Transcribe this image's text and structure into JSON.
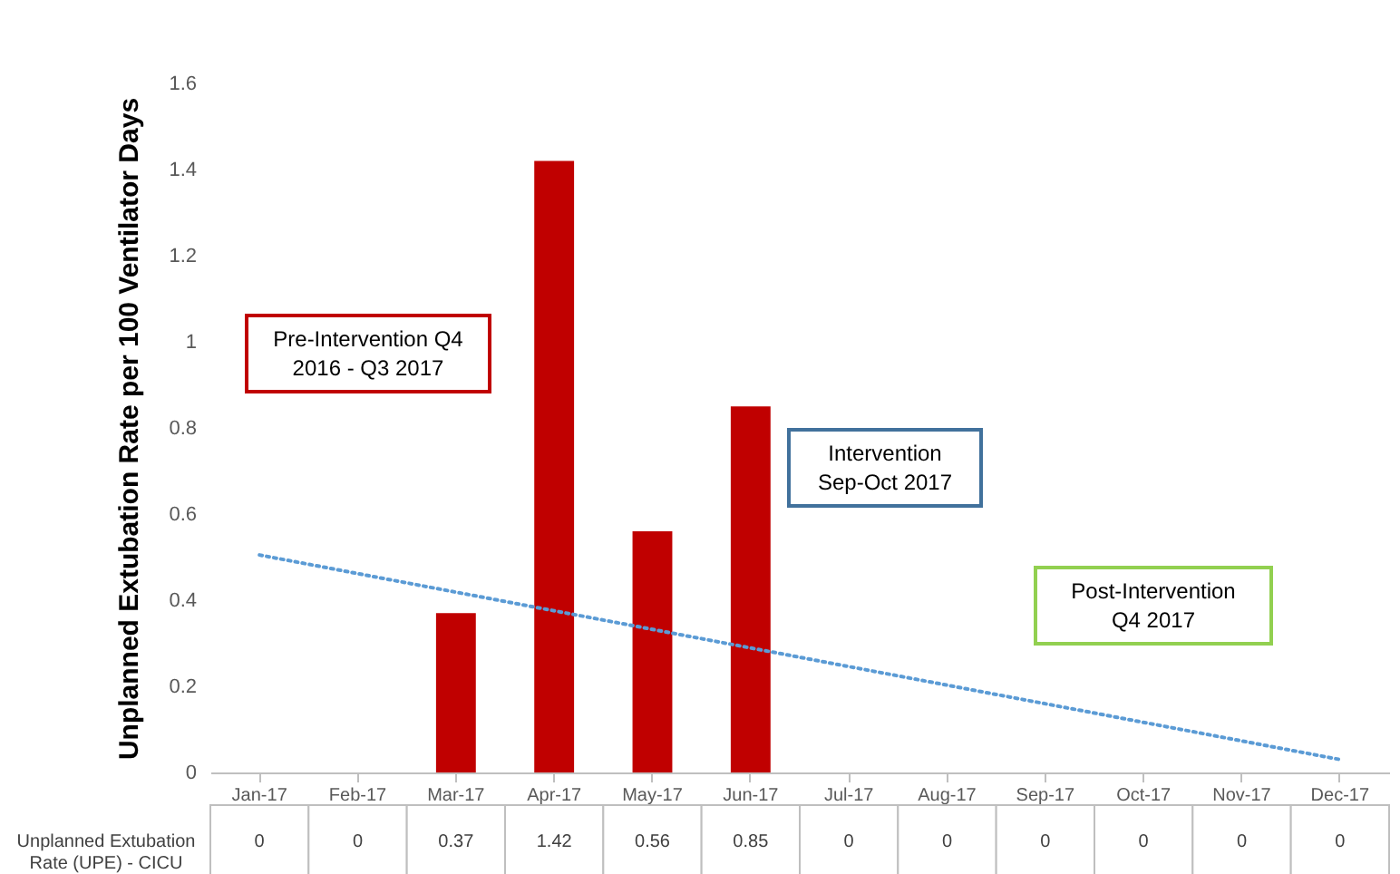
{
  "chart_data": {
    "type": "bar",
    "ylabel": "Unplanned Extubation Rate per 100 Ventilator Days",
    "categories": [
      "Jan-17",
      "Feb-17",
      "Mar-17",
      "Apr-17",
      "May-17",
      "Jun-17",
      "Jul-17",
      "Aug-17",
      "Sep-17",
      "Oct-17",
      "Nov-17",
      "Dec-17"
    ],
    "series": [
      {
        "name": "Unplanned Extubation Rate (UPE) - CICU",
        "color": "#c00000",
        "values": [
          0,
          0,
          0.37,
          1.42,
          0.56,
          0.85,
          0,
          0,
          0,
          0,
          0,
          0
        ],
        "value_labels": [
          "0",
          "0",
          "0.37",
          "1.42",
          "0.56",
          "0.85",
          "0",
          "0",
          "0",
          "0",
          "0",
          "0"
        ]
      },
      {
        "type": "line",
        "color": "#5b9bd5",
        "line_style": "dotted",
        "x": [
          "Jan-17",
          "Dec-17"
        ],
        "values": [
          0.505,
          0.03
        ]
      }
    ],
    "ylim": [
      0,
      1.6
    ],
    "yticks": [
      0,
      0.2,
      0.4,
      0.6,
      0.8,
      1,
      1.2,
      1.4,
      1.6
    ],
    "grid": false,
    "annotations": [
      "Pre-Intervention Q4 2016 - Q3 2017",
      "Intervention Sep-Oct 2017",
      "Post-Intervention Q4 2017"
    ]
  }
}
